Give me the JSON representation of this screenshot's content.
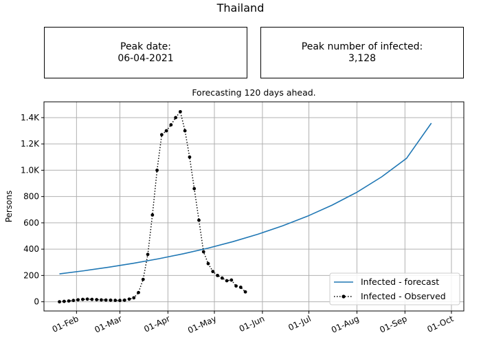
{
  "figure_title": "Thailand",
  "boxes": {
    "peak_date_label": "Peak date:",
    "peak_date_value": "06-04-2021",
    "peak_num_label": "Peak number of infected:",
    "peak_num_value": "3,128"
  },
  "colors": {
    "forecast": "#1f77b4",
    "observed": "#000000",
    "grid": "#b0b0b0"
  },
  "chart_data": {
    "type": "line",
    "title": "Forecasting 120 days ahead.",
    "ylabel": "Persons",
    "xlabel": "",
    "xlim": [
      "2021-01-11",
      "2021-10-09"
    ],
    "ylim": [
      -70,
      1520
    ],
    "grid": true,
    "legend_position": "lower-right",
    "x_ticks": [
      {
        "date": "2021-02-01",
        "label": "01-Feb"
      },
      {
        "date": "2021-03-01",
        "label": "01-Mar"
      },
      {
        "date": "2021-04-01",
        "label": "01-Apr"
      },
      {
        "date": "2021-05-01",
        "label": "01-May"
      },
      {
        "date": "2021-06-01",
        "label": "01-Jun"
      },
      {
        "date": "2021-07-01",
        "label": "01-Jul"
      },
      {
        "date": "2021-08-01",
        "label": "01-Aug"
      },
      {
        "date": "2021-09-01",
        "label": "01-Sep"
      },
      {
        "date": "2021-10-01",
        "label": "01-Oct"
      }
    ],
    "y_ticks": [
      {
        "value": 0,
        "label": "0"
      },
      {
        "value": 200,
        "label": "200"
      },
      {
        "value": 400,
        "label": "400"
      },
      {
        "value": 600,
        "label": "600"
      },
      {
        "value": 800,
        "label": "800"
      },
      {
        "value": 1000,
        "label": "1.0K"
      },
      {
        "value": 1200,
        "label": "1.2K"
      },
      {
        "value": 1400,
        "label": "1.4K"
      }
    ],
    "series": [
      {
        "name": "Infected - forecast",
        "style": "solid",
        "color": "#1f77b4",
        "x": [
          "2021-01-21",
          "2021-02-06",
          "2021-02-22",
          "2021-03-10",
          "2021-03-26",
          "2021-04-11",
          "2021-04-27",
          "2021-05-13",
          "2021-05-29",
          "2021-06-14",
          "2021-06-30",
          "2021-07-16",
          "2021-08-01",
          "2021-08-17",
          "2021-09-02",
          "2021-09-18"
        ],
        "y": [
          212,
          236,
          263,
          293,
          327,
          365,
          408,
          457,
          513,
          577,
          650,
          735,
          833,
          950,
          1090,
          1358
        ]
      },
      {
        "name": "Infected - Observed",
        "style": "dotted-markers",
        "color": "#000000",
        "x": [
          "2021-01-21",
          "2021-01-24",
          "2021-01-27",
          "2021-01-30",
          "2021-02-02",
          "2021-02-05",
          "2021-02-08",
          "2021-02-11",
          "2021-02-14",
          "2021-02-17",
          "2021-02-20",
          "2021-02-23",
          "2021-02-26",
          "2021-03-01",
          "2021-03-04",
          "2021-03-07",
          "2021-03-10",
          "2021-03-13",
          "2021-03-16",
          "2021-03-19",
          "2021-03-22",
          "2021-03-25",
          "2021-03-28",
          "2021-03-31",
          "2021-04-03",
          "2021-04-06",
          "2021-04-09",
          "2021-04-12",
          "2021-04-15",
          "2021-04-18",
          "2021-04-21",
          "2021-04-24",
          "2021-04-27",
          "2021-04-30",
          "2021-05-03",
          "2021-05-06",
          "2021-05-09",
          "2021-05-12",
          "2021-05-15",
          "2021-05-18",
          "2021-05-21"
        ],
        "y": [
          0,
          3,
          6,
          10,
          15,
          18,
          20,
          18,
          16,
          14,
          13,
          12,
          11,
          10,
          12,
          20,
          30,
          70,
          170,
          360,
          660,
          1000,
          1270,
          1300,
          1345,
          1400,
          1445,
          1300,
          1100,
          860,
          620,
          380,
          290,
          230,
          200,
          180,
          160,
          165,
          120,
          110,
          75
        ]
      }
    ]
  }
}
